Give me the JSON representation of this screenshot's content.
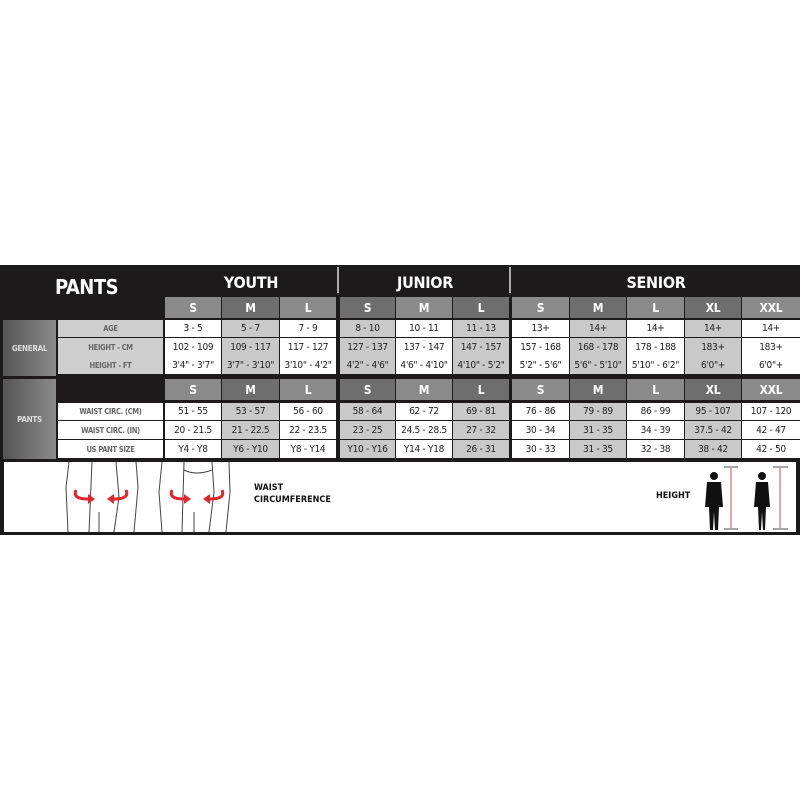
{
  "title": "PANTS",
  "groups": [
    {
      "name": "YOUTH",
      "sizes": [
        "S",
        "M",
        "L"
      ]
    },
    {
      "name": "JUNIOR",
      "sizes": [
        "S",
        "M",
        "L"
      ]
    },
    {
      "name": "SENIOR",
      "sizes": [
        "S",
        "M",
        "L",
        "XL",
        "XXL"
      ]
    }
  ],
  "sections": [
    {
      "name": "GENERAL",
      "rows": [
        {
          "label": "AGE",
          "values": [
            "3 - 5",
            "5 - 7",
            "7 - 9",
            "8 - 10",
            "10 - 11",
            "11 - 13",
            "13+",
            "14+",
            "14+",
            "14+",
            "14+"
          ]
        },
        {
          "label": "HEIGHT - CM",
          "values": [
            "102 - 109",
            "109 - 117",
            "117 - 127",
            "127 - 137",
            "137 - 147",
            "147 - 157",
            "157 - 168",
            "168 - 178",
            "178 - 188",
            "183+",
            "183+"
          ]
        },
        {
          "label": "HEIGHT - FT",
          "values": [
            "3'4\" - 3'7\"",
            "3'7\" - 3'10\"",
            "3'10\" - 4'2\"",
            "4'2\" - 4'6\"",
            "4'6\" - 4'10\"",
            "4'10\" - 5'2\"",
            "5'2\" - 5'6\"",
            "5'6\" - 5'10\"",
            "5'10\" - 6'2\"",
            "6'0\"+",
            "6'0\"+"
          ]
        }
      ]
    },
    {
      "name": "PANTS",
      "rows": [
        {
          "label": "WAIST CIRC. (CM)",
          "values": [
            "51 - 55",
            "53 - 57",
            "56 - 60",
            "58 - 64",
            "62 - 72",
            "69 - 81",
            "76 - 86",
            "79 - 89",
            "86 - 99",
            "95 - 107",
            "107 - 120"
          ]
        },
        {
          "label": "WAIST CIRC. (IN)",
          "values": [
            "20 - 21.5",
            "21 - 22.5",
            "22 - 23.5",
            "23 - 25",
            "24.5 - 28.5",
            "27 - 32",
            "30 - 34",
            "31 - 35",
            "34 - 39",
            "37.5 - 42",
            "42 - 47"
          ]
        },
        {
          "label": "US PANT SIZE",
          "values": [
            "Y4 - Y8",
            "Y6 - Y10",
            "Y8 - Y14",
            "Y10 - Y16",
            "Y14 - Y18",
            "26 - 31",
            "30 - 33",
            "31 - 35",
            "32 - 38",
            "38 - 42",
            "42 - 50"
          ]
        }
      ]
    }
  ],
  "legend": {
    "waist_line1": "WAIST",
    "waist_line2": "CIRCUMFERENCE",
    "height": "HEIGHT"
  },
  "colors": {
    "arrow": "#e3262b",
    "height_line": "#d9474c",
    "background": "#1c1a1b"
  }
}
